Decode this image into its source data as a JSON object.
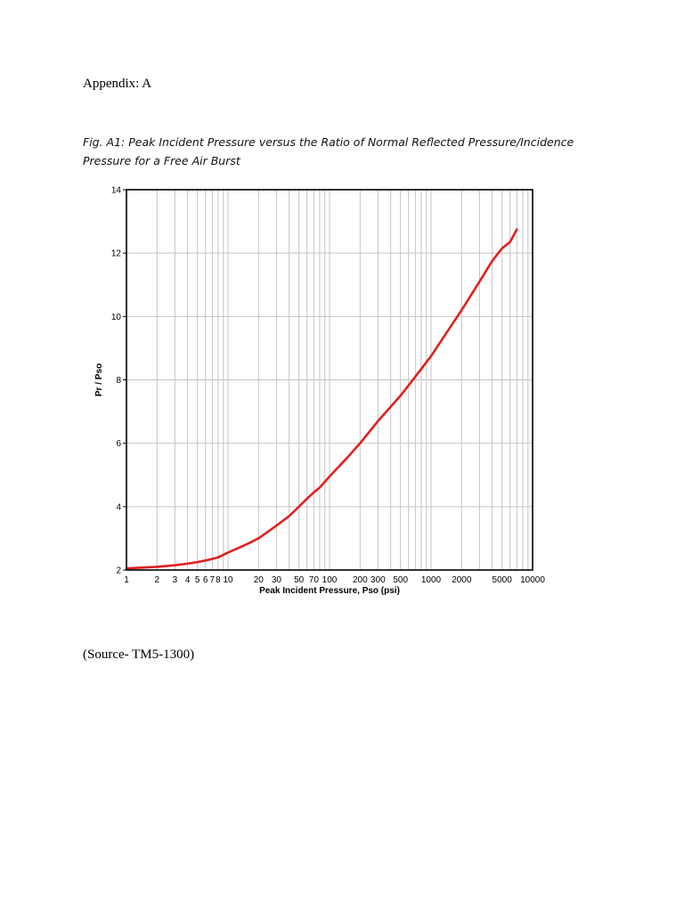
{
  "page": {
    "heading": "Appendix: A",
    "figure_caption_line1": "Fig. A1: Peak Incident Pressure versus the Ratio of Normal Reflected Pressure/Incidence",
    "figure_caption_line2": "Pressure for a Free Air Burst",
    "source": "(Source- TM5-1300)"
  },
  "chart_data": {
    "type": "line",
    "title": "",
    "xlabel": "Peak Incident Pressure, Pso (psi)",
    "ylabel": "Pr / Pso",
    "x_scale": "log",
    "xlim": [
      1,
      10000
    ],
    "ylim": [
      2,
      14
    ],
    "x_tick_labels": [
      "1",
      "2",
      "3",
      "4",
      "5",
      "6",
      "7",
      "8",
      "10",
      "20",
      "30",
      "50",
      "70",
      "100",
      "200",
      "300",
      "500",
      "1000",
      "2000",
      "5000",
      "10000"
    ],
    "y_ticks": [
      2,
      4,
      6,
      8,
      10,
      12,
      14
    ],
    "grid": true,
    "line_color": "#e0201f",
    "series": [
      {
        "x": [
          1,
          1.5,
          2,
          3,
          4,
          5,
          6,
          7,
          8,
          10,
          15,
          20,
          30,
          40,
          50,
          60,
          70,
          80,
          100,
          150,
          200,
          300,
          400,
          500,
          700,
          1000,
          1500,
          2000,
          3000,
          4000,
          5000,
          6000,
          7000
        ],
        "y": [
          2.05,
          2.08,
          2.1,
          2.15,
          2.2,
          2.25,
          2.3,
          2.35,
          2.4,
          2.55,
          2.8,
          3.0,
          3.4,
          3.7,
          4.0,
          4.25,
          4.45,
          4.6,
          4.95,
          5.55,
          6.0,
          6.7,
          7.15,
          7.5,
          8.1,
          8.75,
          9.6,
          10.2,
          11.1,
          11.75,
          12.15,
          12.35,
          12.75
        ]
      }
    ]
  }
}
